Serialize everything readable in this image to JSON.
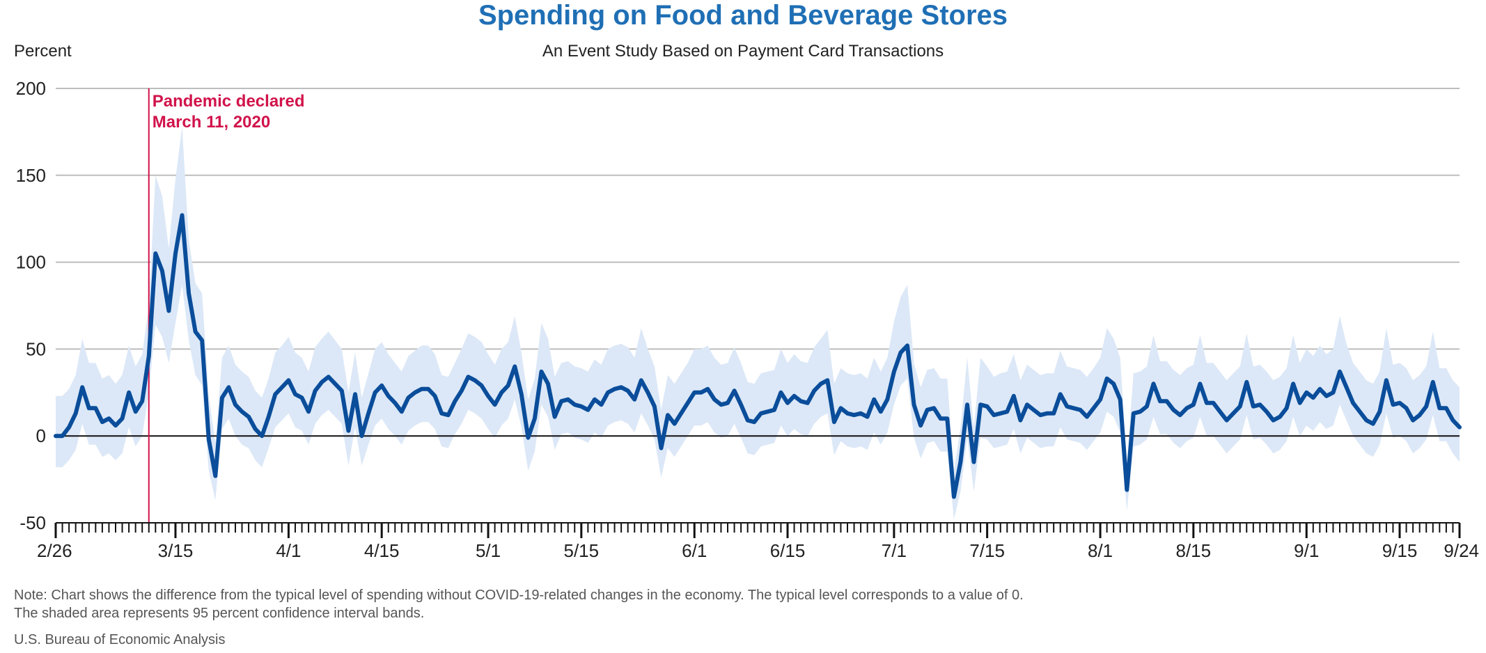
{
  "title": "Spending on Food and Beverage Stores",
  "subtitle": "An Event Study Based on Payment Card Transactions",
  "ylabel": "Percent",
  "note_line1": "Note: Chart shows the difference from the typical level of spending without COVID-19-related changes in the economy. The typical level corresponds to a value of 0.",
  "note_line2": "The shaded area represents 95 percent confidence interval bands.",
  "source": "U.S. Bureau of Economic Analysis",
  "colors": {
    "title": "#1f6fb5",
    "line": "#0a4d9a",
    "band": "#dce8f7",
    "event": "#d1134b"
  },
  "chart_data": {
    "type": "line",
    "title": "Spending on Food and Beverage Stores",
    "subtitle": "An Event Study Based on Payment Card Transactions",
    "ylabel": "Percent",
    "ylim": [
      -50,
      200
    ],
    "yticks": [
      -50,
      0,
      50,
      100,
      150,
      200
    ],
    "x_start": "2020-02-26",
    "x_end": "2020-09-24",
    "xtick_labels": [
      "2/26",
      "3/15",
      "4/1",
      "4/15",
      "5/1",
      "5/15",
      "6/1",
      "6/15",
      "7/1",
      "7/15",
      "8/1",
      "8/15",
      "9/1",
      "9/15",
      "9/24"
    ],
    "xtick_dates": [
      "2020-02-26",
      "2020-03-15",
      "2020-04-01",
      "2020-04-15",
      "2020-05-01",
      "2020-05-15",
      "2020-06-01",
      "2020-06-15",
      "2020-07-01",
      "2020-07-15",
      "2020-08-01",
      "2020-08-15",
      "2020-09-01",
      "2020-09-15",
      "2020-09-24"
    ],
    "grid": "horizontal",
    "event": {
      "date": "2020-03-11",
      "label_line1": "Pandemic declared",
      "label_line2": "March 11, 2020"
    },
    "series": [
      {
        "values": [
          0,
          0,
          5,
          13,
          28,
          16,
          16,
          8,
          10,
          6,
          10,
          25,
          14,
          20,
          46,
          105,
          95,
          72,
          105,
          127,
          82,
          60,
          55,
          -2,
          -23,
          22,
          28,
          18,
          14,
          11,
          4,
          0,
          11,
          24,
          28,
          32,
          24,
          22,
          14,
          26,
          31,
          34,
          30,
          26,
          3,
          24,
          0,
          13,
          25,
          29,
          23,
          19,
          14,
          22,
          25,
          27,
          27,
          23,
          13,
          12,
          20,
          26,
          34,
          32,
          29,
          23,
          18,
          25,
          29,
          40,
          24,
          -1,
          10,
          37,
          30,
          11,
          20,
          21,
          18,
          17,
          15,
          21,
          18,
          25,
          27,
          28,
          26,
          21,
          32,
          25,
          17,
          -7,
          12,
          7,
          13,
          19,
          25,
          25,
          27,
          21,
          18,
          19,
          26,
          18,
          9,
          8,
          13,
          14,
          15,
          25,
          19,
          23,
          20,
          19,
          26,
          30,
          32,
          8,
          16,
          13,
          12,
          13,
          11,
          21,
          14,
          21,
          37,
          48,
          52,
          18,
          6,
          15,
          16,
          10,
          10,
          -35,
          -15,
          18,
          -15,
          18,
          17,
          12,
          13,
          14,
          23,
          9,
          18,
          15,
          12,
          13,
          13,
          24,
          17,
          16,
          15,
          11,
          16,
          21,
          33,
          30,
          21,
          -31,
          13,
          14,
          17,
          30,
          20,
          20,
          15,
          12,
          16,
          18,
          30,
          19,
          19,
          14,
          9,
          13,
          17,
          31,
          17,
          18,
          14,
          9,
          11,
          16,
          30,
          19,
          25,
          22,
          27,
          23,
          25,
          37,
          28,
          19,
          14,
          9,
          7,
          14,
          32,
          18,
          19,
          16,
          9,
          12,
          17,
          31,
          16,
          16,
          9,
          5
        ],
        "lower": [
          -18,
          -18,
          -14,
          -8,
          7,
          -5,
          -5,
          -12,
          -10,
          -14,
          -10,
          5,
          -6,
          0,
          25,
          64,
          57,
          42,
          65,
          87,
          55,
          35,
          29,
          -20,
          -37,
          4,
          10,
          0,
          -5,
          -7,
          -14,
          -18,
          -7,
          5,
          9,
          13,
          5,
          3,
          -5,
          7,
          12,
          15,
          11,
          7,
          -17,
          5,
          -17,
          -5,
          6,
          10,
          4,
          0,
          -5,
          3,
          6,
          8,
          8,
          4,
          -6,
          -7,
          1,
          7,
          15,
          13,
          10,
          4,
          -1,
          6,
          10,
          21,
          5,
          -20,
          -9,
          18,
          11,
          -8,
          1,
          2,
          -1,
          -2,
          -4,
          2,
          -1,
          6,
          8,
          9,
          7,
          2,
          13,
          6,
          -2,
          -24,
          -7,
          -12,
          -6,
          0,
          6,
          6,
          8,
          2,
          -1,
          0,
          7,
          -1,
          -10,
          -11,
          -6,
          -5,
          -4,
          6,
          0,
          4,
          1,
          0,
          7,
          11,
          13,
          -11,
          -3,
          -6,
          -7,
          -6,
          -8,
          2,
          -5,
          2,
          18,
          29,
          33,
          -1,
          -13,
          -4,
          -3,
          -9,
          -9,
          -48,
          -32,
          -1,
          -32,
          -1,
          -2,
          -7,
          -6,
          -5,
          4,
          -10,
          -1,
          -4,
          -7,
          -6,
          -6,
          5,
          -2,
          -3,
          -4,
          -8,
          -3,
          2,
          14,
          11,
          2,
          -43,
          -6,
          -5,
          -2,
          11,
          1,
          1,
          -4,
          -7,
          -3,
          -1,
          11,
          0,
          0,
          -5,
          -10,
          -6,
          -2,
          12,
          -2,
          -1,
          -5,
          -10,
          -8,
          -3,
          11,
          0,
          6,
          3,
          8,
          4,
          6,
          18,
          9,
          0,
          -5,
          -10,
          -12,
          -5,
          13,
          -1,
          0,
          -3,
          -10,
          -7,
          -2,
          12,
          -3,
          -3,
          -10,
          -15
        ],
        "upper": [
          23,
          23,
          27,
          35,
          56,
          42,
          42,
          33,
          35,
          30,
          35,
          52,
          40,
          47,
          75,
          150,
          138,
          108,
          148,
          178,
          113,
          88,
          82,
          23,
          -4,
          45,
          52,
          41,
          37,
          34,
          26,
          22,
          33,
          48,
          52,
          57,
          48,
          45,
          37,
          51,
          56,
          60,
          55,
          50,
          25,
          48,
          22,
          36,
          50,
          54,
          47,
          42,
          37,
          46,
          49,
          52,
          52,
          47,
          35,
          34,
          42,
          50,
          59,
          57,
          54,
          47,
          41,
          50,
          54,
          69,
          48,
          21,
          33,
          65,
          56,
          34,
          42,
          43,
          40,
          39,
          37,
          44,
          41,
          50,
          52,
          53,
          51,
          45,
          62,
          50,
          40,
          15,
          35,
          30,
          36,
          42,
          50,
          50,
          52,
          45,
          41,
          42,
          51,
          42,
          31,
          30,
          36,
          37,
          38,
          50,
          42,
          47,
          43,
          42,
          51,
          56,
          61,
          30,
          39,
          36,
          35,
          36,
          33,
          45,
          37,
          45,
          66,
          80,
          87,
          42,
          28,
          38,
          39,
          33,
          33,
          -20,
          5,
          45,
          5,
          45,
          40,
          34,
          36,
          37,
          47,
          32,
          41,
          38,
          35,
          36,
          36,
          49,
          40,
          39,
          38,
          34,
          39,
          45,
          62,
          56,
          45,
          -15,
          36,
          37,
          40,
          58,
          43,
          43,
          38,
          35,
          39,
          41,
          58,
          42,
          42,
          37,
          32,
          36,
          40,
          59,
          40,
          41,
          37,
          32,
          34,
          39,
          58,
          42,
          50,
          46,
          52,
          47,
          50,
          69,
          53,
          42,
          37,
          32,
          30,
          37,
          62,
          41,
          42,
          39,
          32,
          35,
          40,
          60,
          39,
          39,
          32,
          28
        ]
      }
    ]
  }
}
